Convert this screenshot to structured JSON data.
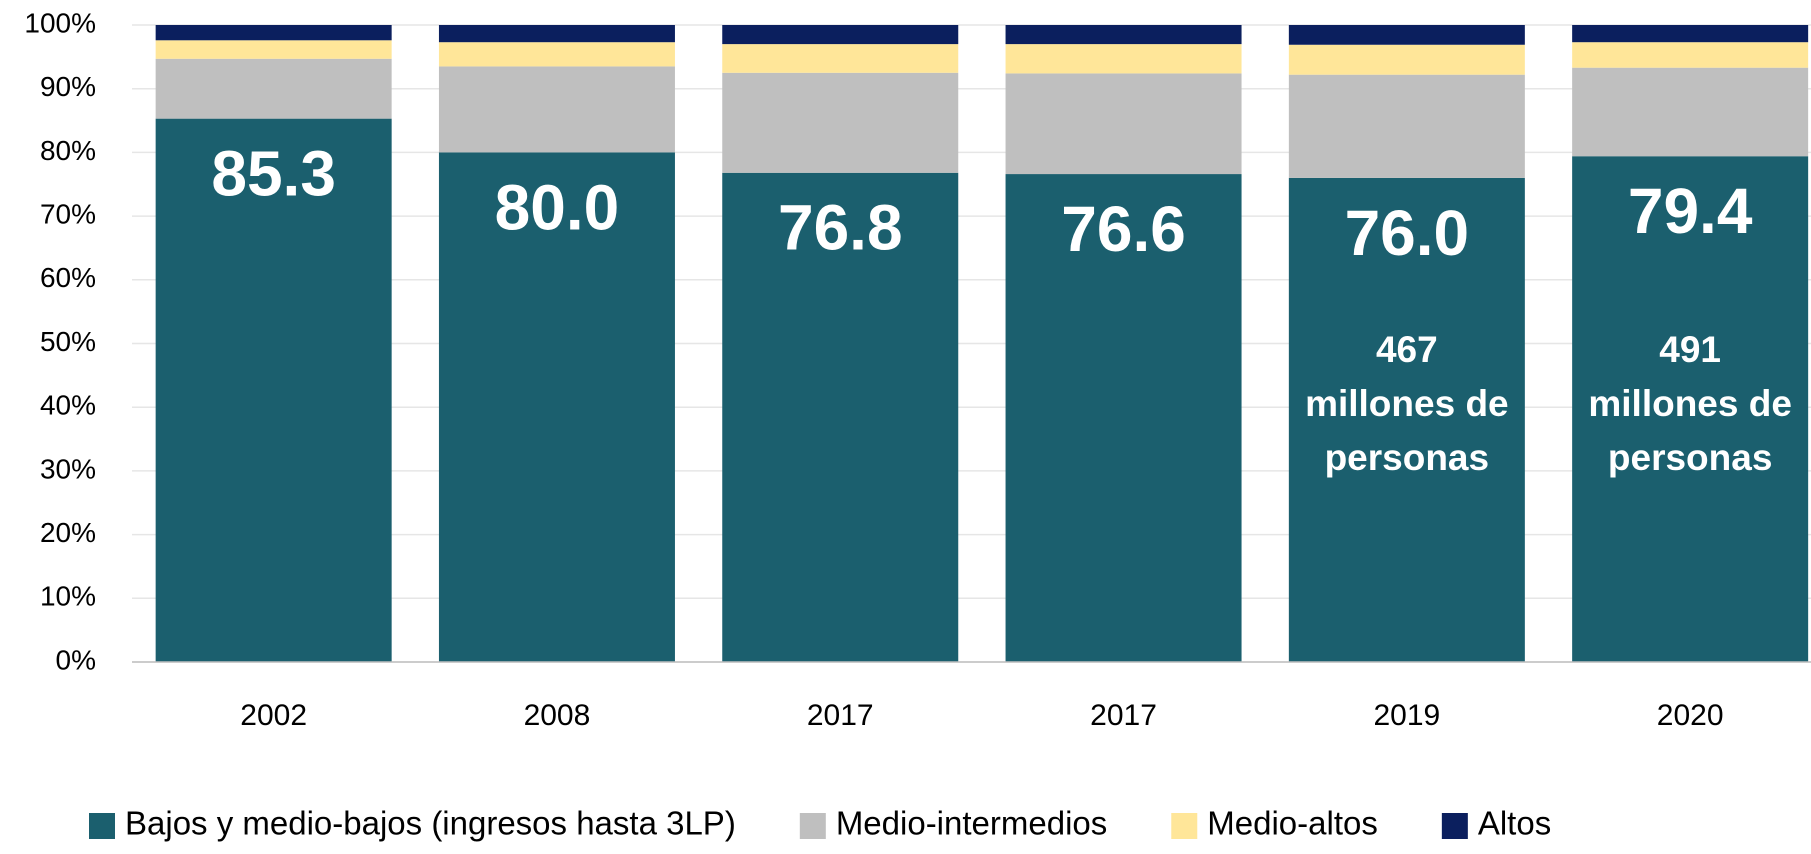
{
  "chart_data": {
    "type": "stacked_bar",
    "categories": [
      "2002",
      "2008",
      "2017",
      "2017",
      "2019",
      "2020"
    ],
    "series": [
      {
        "name": "Bajos y medio-bajos (ingresos hasta 3LP)",
        "color": "#1b5f6e",
        "values": [
          85.3,
          80.0,
          76.8,
          76.6,
          76.0,
          79.4
        ],
        "value_labels": [
          "85.3",
          "80.0",
          "76.8",
          "76.6",
          "76.0",
          "79.4"
        ]
      },
      {
        "name": "Medio-intermedios",
        "color": "#bfbfbf",
        "values": [
          9.4,
          13.5,
          15.7,
          15.8,
          16.2,
          13.9
        ]
      },
      {
        "name": "Medio-altos",
        "color": "#ffe699",
        "values": [
          2.9,
          3.8,
          4.5,
          4.6,
          4.7,
          4.0
        ]
      },
      {
        "name": "Altos",
        "color": "#0b1f5e",
        "values": [
          2.4,
          2.7,
          3.0,
          3.0,
          3.1,
          2.7
        ]
      }
    ],
    "ylim": [
      0,
      100
    ],
    "yticks": [
      {
        "value": 0,
        "label": "0%"
      },
      {
        "value": 10,
        "label": "10%"
      },
      {
        "value": 20,
        "label": "20%"
      },
      {
        "value": 30,
        "label": "30%"
      },
      {
        "value": 40,
        "label": "40%"
      },
      {
        "value": 50,
        "label": "50%"
      },
      {
        "value": 60,
        "label": "60%"
      },
      {
        "value": 70,
        "label": "70%"
      },
      {
        "value": 80,
        "label": "80%"
      },
      {
        "value": 90,
        "label": "90%"
      },
      {
        "value": 100,
        "label": "100%"
      }
    ],
    "grid": true,
    "legend": "bottom",
    "annotations": [
      {
        "x": "2019",
        "lines": [
          "467",
          "millones de",
          "personas"
        ]
      },
      {
        "x": "2020",
        "lines": [
          "491",
          "millones de",
          "personas"
        ]
      }
    ]
  }
}
